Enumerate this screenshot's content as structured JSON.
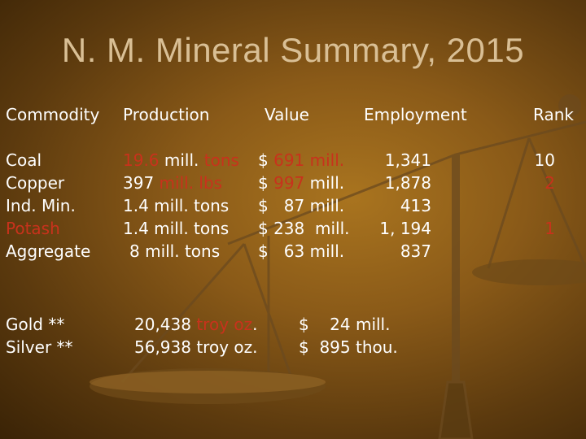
{
  "slide": {
    "title": "N. M. Mineral  Summary, 2015"
  },
  "table": {
    "headers": {
      "commodity": "Commodity",
      "production": "Production",
      "value": "Value",
      "employment": "Employment",
      "rank": "Rank"
    },
    "rows": [
      {
        "commodity": "Coal",
        "production_num": "19.6",
        "production_sep": " mill. ",
        "production_unit": "tons",
        "value_cur": "$ ",
        "value_text": "691 mill.",
        "employment": "1,341",
        "rank": "10"
      },
      {
        "commodity": "Copper",
        "production_num": "397",
        "production_sep": " ",
        "production_unit": "mill. lbs",
        "value_cur": "$ ",
        "value_num": "997",
        "value_sep": " ",
        "value_unit": "mill.",
        "employment": "1,878",
        "rank": "2"
      },
      {
        "commodity": "Ind. Min.",
        "production": "1.4 mill. tons",
        "value": "$   87 mill.",
        "employment": "413"
      },
      {
        "commodity": "Potash",
        "production": "1.4 mill. tons",
        "value": "$ 238  mill.",
        "employment": "1, 194",
        "rank": "1"
      },
      {
        "commodity": "Aggregate",
        "production": "8 mill. tons",
        "value": "$   63 mill.",
        "employment": "837"
      }
    ]
  },
  "precious": {
    "rows": [
      {
        "commodity": "Gold **",
        "production_num": "20,438",
        "production_sep": " ",
        "production_unit": "troy oz",
        "production_end": ".",
        "value": "$    24 mill."
      },
      {
        "commodity": "Silver **",
        "production": "56,938 troy oz.",
        "value": "$  895 thou."
      }
    ]
  },
  "colors": {
    "background_center": "#a9741f",
    "background_edge": "#3a2306",
    "title": "#d9bf95",
    "text": "#ffffff",
    "highlight": "#c8321c"
  },
  "decor": {
    "background_image": "balance-scale"
  }
}
